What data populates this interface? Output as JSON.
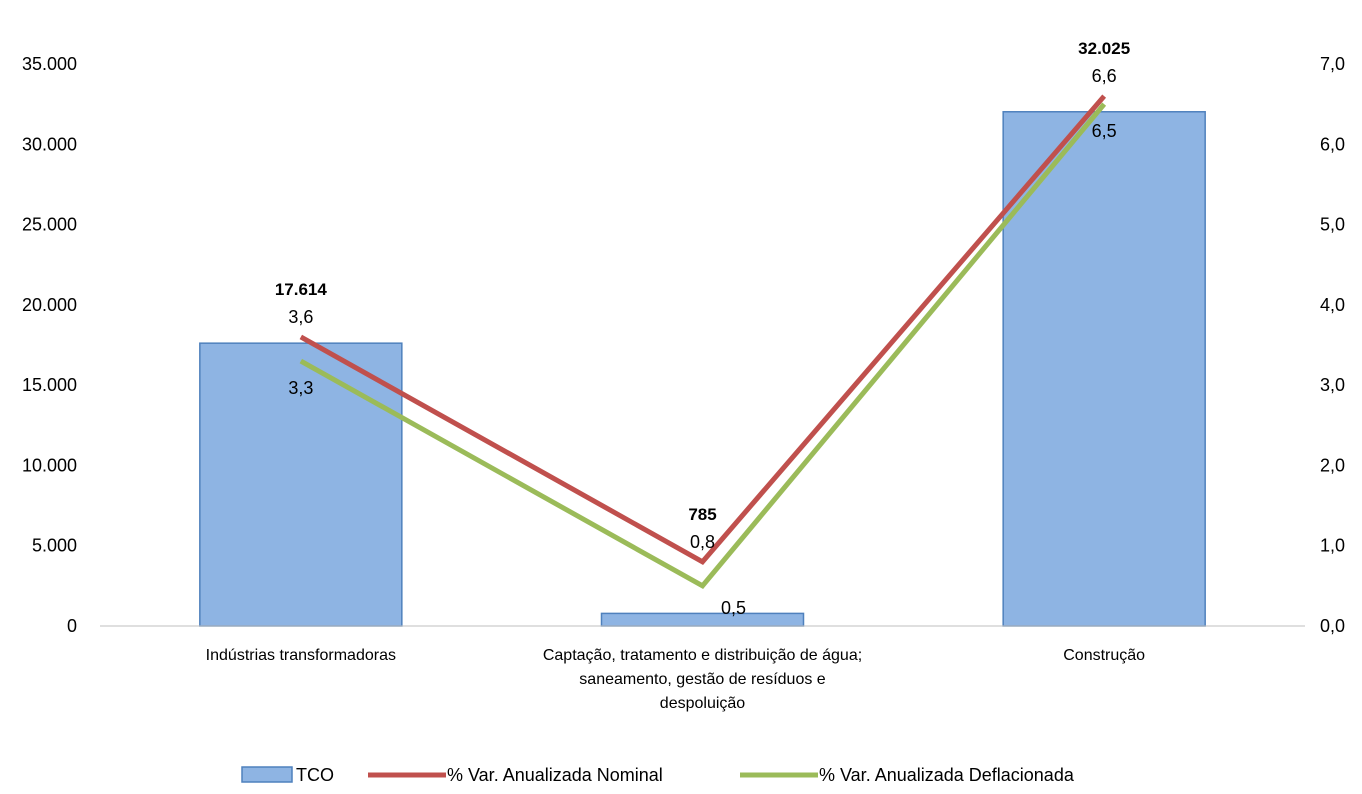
{
  "chart_data": {
    "type": "bar",
    "categories": [
      [
        "Indústrias transformadoras"
      ],
      [
        "Captação, tratamento e distribuição de água;",
        "saneamento,  gestão de resíduos e",
        "despoluição"
      ],
      [
        "Construção"
      ]
    ],
    "bar_series": {
      "name": "TCO",
      "values": [
        17614,
        785,
        32025
      ],
      "labels": [
        "17.614",
        "785",
        "32.025"
      ],
      "color": "#8EB4E3",
      "border": "#4F81BD"
    },
    "line_series": [
      {
        "name": "% Var. Anualizada Nominal",
        "values": [
          3.6,
          0.8,
          6.6
        ],
        "labels": [
          "3,6",
          "0,8",
          "6,6"
        ],
        "color": "#C0504D"
      },
      {
        "name": "% Var. Anualizada Deflacionada",
        "values": [
          3.3,
          0.5,
          6.5
        ],
        "labels": [
          "3,3",
          "0,5",
          "6,5"
        ],
        "color": "#9BBB59"
      }
    ],
    "y_left": {
      "ylim": [
        0,
        35000
      ],
      "ticks": [
        0,
        5000,
        10000,
        15000,
        20000,
        25000,
        30000,
        35000
      ],
      "tick_labels": [
        "0",
        "5.000",
        "10.000",
        "15.000",
        "20.000",
        "25.000",
        "30.000",
        "35.000"
      ]
    },
    "y_right": {
      "ylim": [
        0,
        7
      ],
      "ticks": [
        0,
        1,
        2,
        3,
        4,
        5,
        6,
        7
      ],
      "tick_labels": [
        "0,0",
        "1,0",
        "2,0",
        "3,0",
        "4,0",
        "5,0",
        "6,0",
        "7,0"
      ]
    },
    "grid": false,
    "legend_position": "bottom"
  }
}
